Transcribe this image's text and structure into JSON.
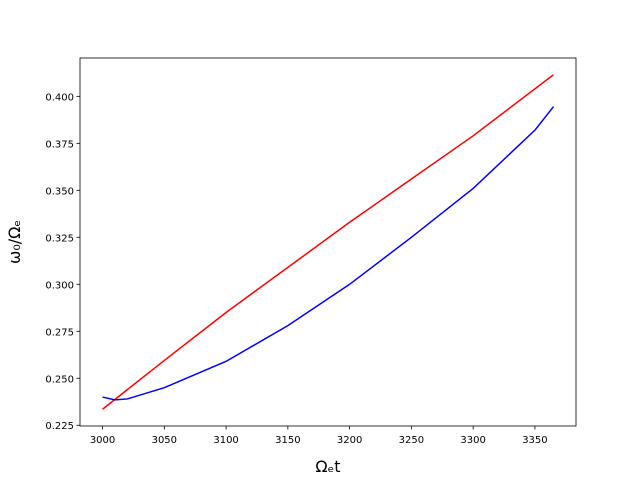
{
  "chart_data": {
    "type": "line",
    "xlabel": "Ωₑt",
    "ylabel": "ω₀/Ωₑ",
    "series": [
      {
        "name": "red",
        "color": "#ff0000",
        "x": [
          3000,
          3050,
          3100,
          3150,
          3200,
          3250,
          3300,
          3365
        ],
        "values": [
          0.2335,
          0.2595,
          0.285,
          0.309,
          0.333,
          0.356,
          0.379,
          0.4115
        ]
      },
      {
        "name": "blue",
        "color": "#0000ff",
        "x": [
          3000,
          3010,
          3020,
          3050,
          3100,
          3150,
          3200,
          3250,
          3300,
          3350,
          3365
        ],
        "values": [
          0.24,
          0.2385,
          0.239,
          0.245,
          0.259,
          0.278,
          0.3,
          0.325,
          0.351,
          0.382,
          0.3945
        ]
      }
    ],
    "xlim": [
      2981.75,
      3383.25
    ],
    "ylim": [
      0.2246,
      0.4204
    ],
    "xticks": [
      3000,
      3050,
      3100,
      3150,
      3200,
      3250,
      3300,
      3350
    ],
    "yticks": [
      0.225,
      {
        "value": 0.25,
        "label": "0.250"
      },
      0.275,
      {
        "value": 0.3,
        "label": "0.300"
      },
      0.325,
      {
        "value": 0.35,
        "label": "0.350"
      },
      0.375,
      {
        "value": 0.4,
        "label": "0.400"
      }
    ]
  }
}
